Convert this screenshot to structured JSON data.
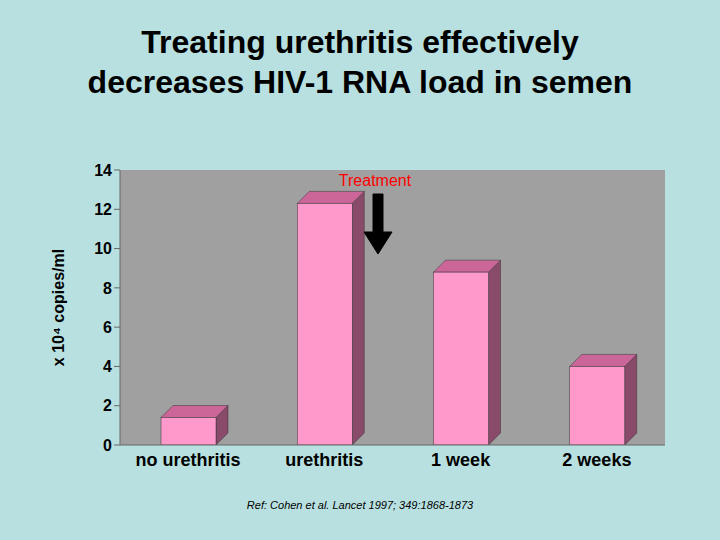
{
  "chart_data": {
    "type": "bar",
    "title": "Treating urethritis effectively decreases HIV-1 RNA load in semen",
    "y_label": "x 10⁴ copies/ml",
    "categories": [
      "no urethritis",
      "urethritis",
      "1 week",
      "2 weeks"
    ],
    "values": [
      1.4,
      12.3,
      8.8,
      4.0
    ],
    "color": "#ff99cc",
    "ylim": [
      0,
      14
    ],
    "yticks": [
      0,
      2,
      4,
      6,
      8,
      10,
      12,
      14
    ],
    "grid": false,
    "annotations": [
      "Treatment"
    ],
    "source": "Ref: Cohen et al. Lancet 1997; 349:1868-1873"
  }
}
